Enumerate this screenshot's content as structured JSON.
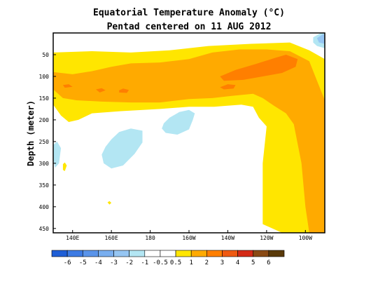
{
  "chart_data": {
    "type": "heatmap",
    "title": "Equatorial Temperature Anomaly (°C)",
    "subtitle": "Pentad centered on 11 AUG 2012",
    "xlabel": "",
    "ylabel": "Depth (meter)",
    "x_axis": {
      "range_east_longitude": [
        130,
        270
      ],
      "ticks": [
        {
          "value": 140,
          "label": "140E"
        },
        {
          "value": 160,
          "label": "160E"
        },
        {
          "value": 180,
          "label": "180"
        },
        {
          "value": 200,
          "label": "160W"
        },
        {
          "value": 220,
          "label": "140W"
        },
        {
          "value": 240,
          "label": "120W"
        },
        {
          "value": 260,
          "label": "100W"
        }
      ]
    },
    "y_axis": {
      "range": [
        0,
        460
      ],
      "inverted": true,
      "ticks": [
        50,
        100,
        150,
        200,
        250,
        300,
        350,
        400,
        450
      ]
    },
    "colorbar": {
      "levels": [
        "-6",
        "-5",
        "-4",
        "-3",
        "-2",
        "-1",
        "-0.5",
        "0.5",
        "1",
        "2",
        "3",
        "4",
        "5",
        "6"
      ],
      "colors": [
        "#1f5fd6",
        "#3d7be3",
        "#5a94ea",
        "#79aeef",
        "#96c6f3",
        "#b3e6f3",
        "#ffffff",
        "#ffffff",
        "#ffe600",
        "#ffaa00",
        "#ff7f00",
        "#ef5a12",
        "#d42a16",
        "#8a4a14",
        "#5a3a0a"
      ]
    },
    "contours": [
      {
        "level": 1,
        "color": "#ffe600",
        "points": [
          [
            130,
            45
          ],
          [
            150,
            42
          ],
          [
            170,
            45
          ],
          [
            190,
            40
          ],
          [
            210,
            30
          ],
          [
            232,
            25
          ],
          [
            252,
            22
          ],
          [
            262,
            40
          ],
          [
            270,
            60
          ],
          [
            270,
            205
          ],
          [
            267,
            360
          ],
          [
            265,
            460
          ],
          [
            248,
            460
          ],
          [
            238,
            440
          ],
          [
            238,
            300
          ],
          [
            240,
            215
          ],
          [
            236,
            195
          ],
          [
            233,
            170
          ],
          [
            227,
            165
          ],
          [
            218,
            168
          ],
          [
            213,
            170
          ],
          [
            200,
            170
          ],
          [
            185,
            175
          ],
          [
            165,
            180
          ],
          [
            150,
            185
          ],
          [
            143,
            200
          ],
          [
            138,
            205
          ],
          [
            134,
            190
          ],
          [
            130,
            165
          ],
          [
            130,
            100
          ]
        ]
      },
      {
        "level": 2,
        "color": "#ffaa00",
        "points": [
          [
            130,
            90
          ],
          [
            140,
            95
          ],
          [
            150,
            88
          ],
          [
            160,
            78
          ],
          [
            170,
            70
          ],
          [
            185,
            68
          ],
          [
            200,
            60
          ],
          [
            212,
            45
          ],
          [
            226,
            38
          ],
          [
            240,
            38
          ],
          [
            252,
            42
          ],
          [
            262,
            65
          ],
          [
            266,
            110
          ],
          [
            270,
            155
          ],
          [
            270,
            460
          ],
          [
            262,
            460
          ],
          [
            260,
            400
          ],
          [
            258,
            300
          ],
          [
            254,
            210
          ],
          [
            250,
            185
          ],
          [
            244,
            168
          ],
          [
            238,
            150
          ],
          [
            233,
            140
          ],
          [
            222,
            145
          ],
          [
            212,
            150
          ],
          [
            200,
            152
          ],
          [
            185,
            160
          ],
          [
            170,
            160
          ],
          [
            155,
            158
          ],
          [
            142,
            155
          ],
          [
            135,
            150
          ],
          [
            130,
            130
          ]
        ]
      },
      {
        "level": 3,
        "color": "#ff7f00",
        "points": [
          [
            216,
            100
          ],
          [
            224,
            85
          ],
          [
            234,
            72
          ],
          [
            244,
            58
          ],
          [
            250,
            50
          ],
          [
            256,
            60
          ],
          [
            255,
            78
          ],
          [
            248,
            92
          ],
          [
            238,
            100
          ],
          [
            228,
            108
          ],
          [
            218,
            110
          ]
        ]
      },
      {
        "level": 3,
        "color": "#ff7f00",
        "points": [
          [
            216,
            125
          ],
          [
            220,
            118
          ],
          [
            224,
            120
          ],
          [
            223,
            128
          ],
          [
            218,
            130
          ]
        ]
      },
      {
        "level": 3,
        "color": "#ff7f00",
        "points": [
          [
            152,
            130
          ],
          [
            155,
            127
          ],
          [
            157,
            132
          ],
          [
            154,
            137
          ]
        ]
      },
      {
        "level": 3,
        "color": "#ff7f00",
        "points": [
          [
            164,
            132
          ],
          [
            166,
            128
          ],
          [
            169,
            131
          ],
          [
            168,
            138
          ],
          [
            164,
            137
          ]
        ]
      },
      {
        "level": 3,
        "color": "#ff7f00",
        "points": [
          [
            135,
            120
          ],
          [
            138,
            118
          ],
          [
            140,
            124
          ],
          [
            136,
            126
          ]
        ]
      },
      {
        "level": -0.5,
        "color": "#b3e6f3",
        "points": [
          [
            187,
            208
          ],
          [
            190,
            195
          ],
          [
            195,
            182
          ],
          [
            200,
            177
          ],
          [
            203,
            185
          ],
          [
            202,
            200
          ],
          [
            200,
            222
          ],
          [
            194,
            234
          ],
          [
            188,
            230
          ],
          [
            186,
            220
          ]
        ]
      },
      {
        "level": -0.5,
        "color": "#b3e6f3",
        "points": [
          [
            157,
            262
          ],
          [
            160,
            245
          ],
          [
            164,
            228
          ],
          [
            170,
            220
          ],
          [
            176,
            225
          ],
          [
            176,
            252
          ],
          [
            172,
            278
          ],
          [
            166,
            305
          ],
          [
            160,
            312
          ],
          [
            156,
            300
          ],
          [
            155,
            280
          ]
        ]
      },
      {
        "level": -0.5,
        "color": "#b3e6f3",
        "points": [
          [
            130,
            258
          ],
          [
            132,
            250
          ],
          [
            134,
            265
          ],
          [
            133,
            300
          ],
          [
            131,
            310
          ],
          [
            130,
            290
          ]
        ]
      },
      {
        "level": -0.5,
        "color": "#b3e6f3",
        "points": [
          [
            264,
            10
          ],
          [
            268,
            0
          ],
          [
            270,
            0
          ],
          [
            270,
            35
          ],
          [
            266,
            30
          ],
          [
            264,
            22
          ]
        ]
      },
      {
        "level": -1,
        "color": "#96c6f3",
        "points": [
          [
            266,
            12
          ],
          [
            269,
            3
          ],
          [
            270,
            3
          ],
          [
            270,
            25
          ],
          [
            267,
            22
          ]
        ]
      },
      {
        "level": 1,
        "color": "#ffe600",
        "points": [
          [
            135,
            302
          ],
          [
            136,
            298
          ],
          [
            137,
            305
          ],
          [
            136,
            318
          ],
          [
            135,
            315
          ]
        ]
      },
      {
        "level": 1,
        "color": "#ffe600",
        "points": [
          [
            158,
            390
          ],
          [
            159,
            387
          ],
          [
            160,
            391
          ],
          [
            159,
            395
          ]
        ]
      }
    ]
  }
}
